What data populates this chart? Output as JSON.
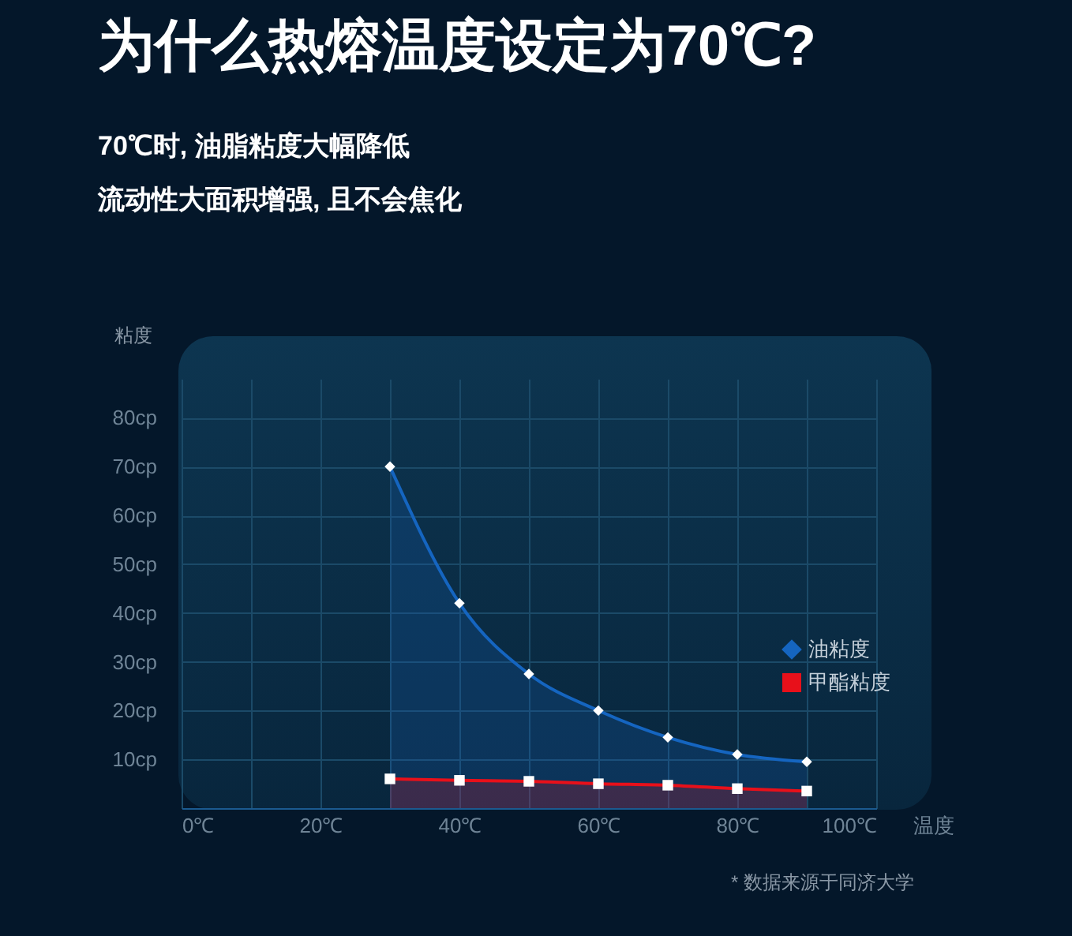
{
  "chart_data": {
    "type": "area",
    "title": "为什么热熔温度设定为70℃?",
    "subtitle": [
      "70℃时, 油脂粘度大幅降低",
      "流动性大面积增强, 且不会焦化"
    ],
    "xlabel": "温度",
    "ylabel": "粘度",
    "x": [
      30,
      40,
      50,
      60,
      70,
      80,
      90
    ],
    "series": [
      {
        "name": "油粘度",
        "color": "#1565c0",
        "marker": "diamond",
        "values": [
          70,
          42,
          27.5,
          20,
          14.5,
          11,
          9.5
        ]
      },
      {
        "name": "甲酯粘度",
        "color": "#e8101a",
        "marker": "square",
        "values": [
          6,
          5.7,
          5.5,
          5,
          4.7,
          4,
          3.5
        ]
      }
    ],
    "xlim": [
      0,
      100
    ],
    "xticks": [
      {
        "value": 0,
        "label": "0℃"
      },
      {
        "value": 10,
        "label": null
      },
      {
        "value": 20,
        "label": "20℃"
      },
      {
        "value": 30,
        "label": null
      },
      {
        "value": 40,
        "label": "40℃"
      },
      {
        "value": 50,
        "label": null
      },
      {
        "value": 60,
        "label": "60℃"
      },
      {
        "value": 70,
        "label": null
      },
      {
        "value": 80,
        "label": "80℃"
      },
      {
        "value": 90,
        "label": null
      },
      {
        "value": 100,
        "label": "100℃"
      }
    ],
    "ylim": [
      0,
      88
    ],
    "yticks": [
      {
        "value": 10,
        "label": "10cp"
      },
      {
        "value": 20,
        "label": "20cp"
      },
      {
        "value": 30,
        "label": "30cp"
      },
      {
        "value": 40,
        "label": "40cp"
      },
      {
        "value": 50,
        "label": "50cp"
      },
      {
        "value": 60,
        "label": "60cp"
      },
      {
        "value": 70,
        "label": "70cp"
      },
      {
        "value": 80,
        "label": "80cp"
      }
    ],
    "grid": true,
    "legend": "right",
    "annotations": [
      "* 数据来源于同济大学"
    ]
  }
}
